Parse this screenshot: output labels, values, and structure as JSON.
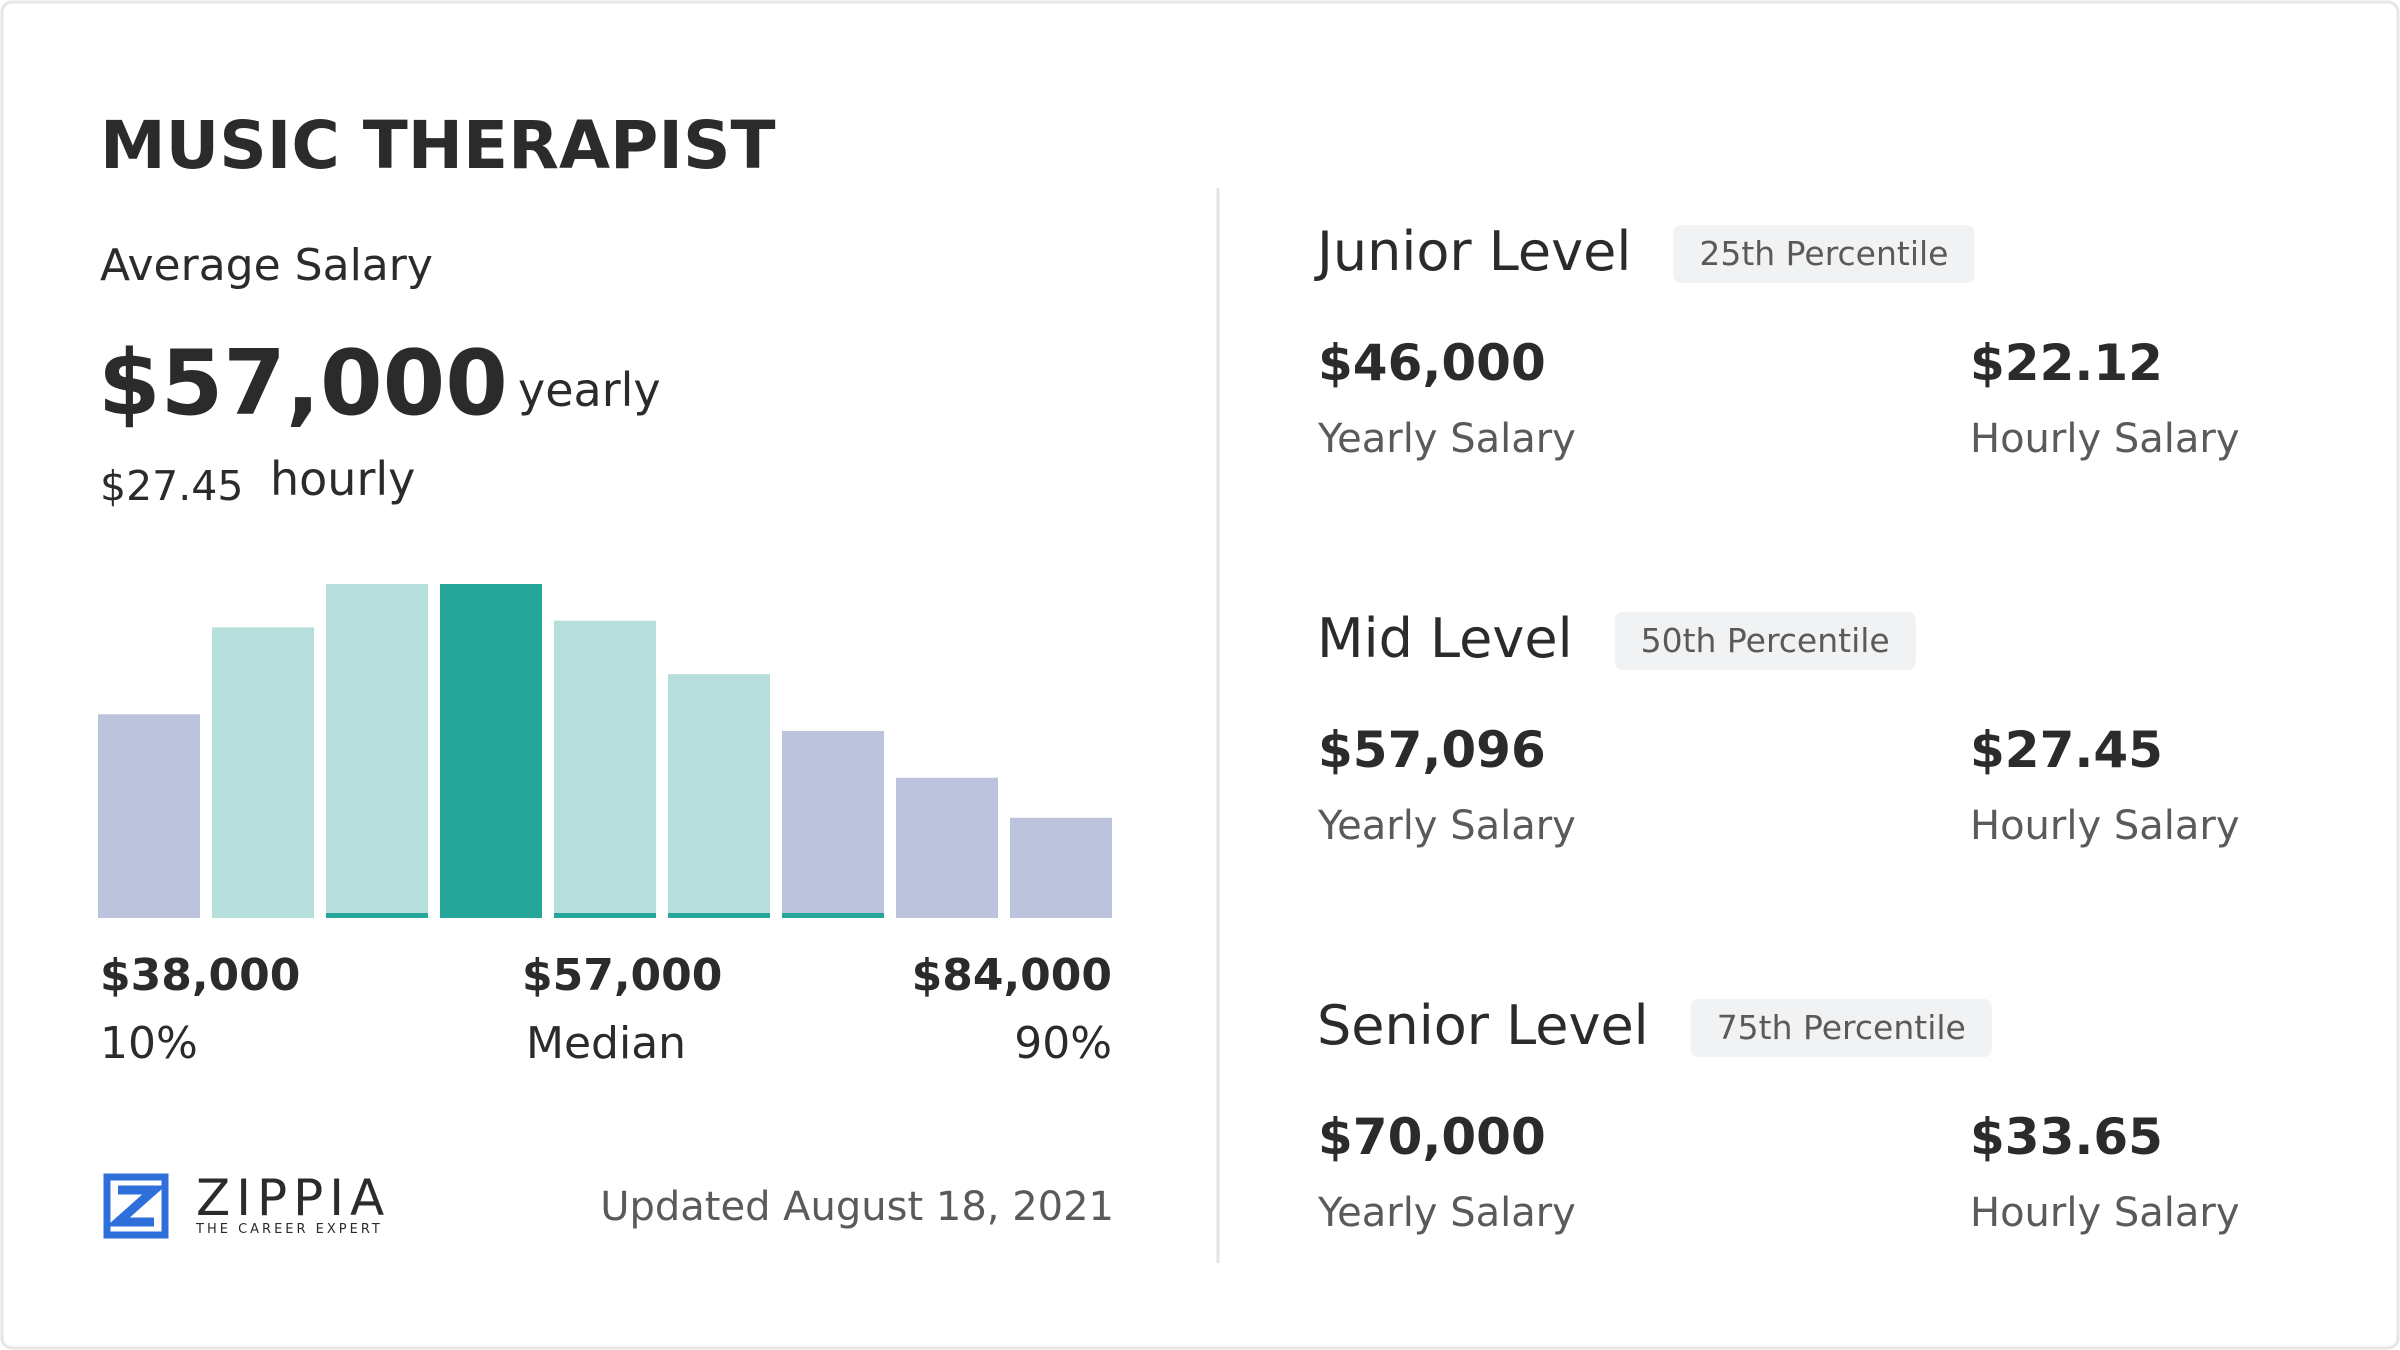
{
  "header": {
    "title": "MUSIC THERAPIST"
  },
  "average": {
    "label": "Average Salary",
    "yearly_value": "$57,000",
    "yearly_unit": "yearly",
    "hourly_value": "$27.45",
    "hourly_unit": "hourly"
  },
  "chart_data": {
    "type": "bar",
    "values": [
      61,
      87,
      100,
      100,
      89,
      73,
      56,
      42,
      30
    ],
    "colors": [
      "#bcc3dc",
      "#b6dfdb",
      "#b6dfdb",
      "#26a69a",
      "#b6dfdb",
      "#b6dfdb",
      "#bcc3dc",
      "#bcc3dc",
      "#bcc3dc"
    ],
    "underline": [
      false,
      false,
      true,
      false,
      true,
      true,
      true,
      false,
      false
    ],
    "underline_color": "#26a69a",
    "ylim": [
      0,
      100
    ],
    "annotations": [
      {
        "value": "$38,000",
        "label": "10%"
      },
      {
        "value": "$57,000",
        "label": "Median"
      },
      {
        "value": "$84,000",
        "label": "90%"
      }
    ]
  },
  "levels": [
    {
      "name": "Junior Level",
      "percentile": "25th Percentile",
      "yearly": "$46,000",
      "yearly_label": "Yearly Salary",
      "hourly": "$22.12",
      "hourly_label": "Hourly Salary"
    },
    {
      "name": "Mid Level",
      "percentile": "50th Percentile",
      "yearly": "$57,096",
      "yearly_label": "Yearly Salary",
      "hourly": "$27.45",
      "hourly_label": "Hourly Salary"
    },
    {
      "name": "Senior Level",
      "percentile": "75th Percentile",
      "yearly": "$70,000",
      "yearly_label": "Yearly Salary",
      "hourly": "$33.65",
      "hourly_label": "Hourly Salary"
    }
  ],
  "footer": {
    "brand": "ZIPPIA",
    "tagline": "THE CAREER EXPERT",
    "updated": "Updated August 18, 2021"
  }
}
